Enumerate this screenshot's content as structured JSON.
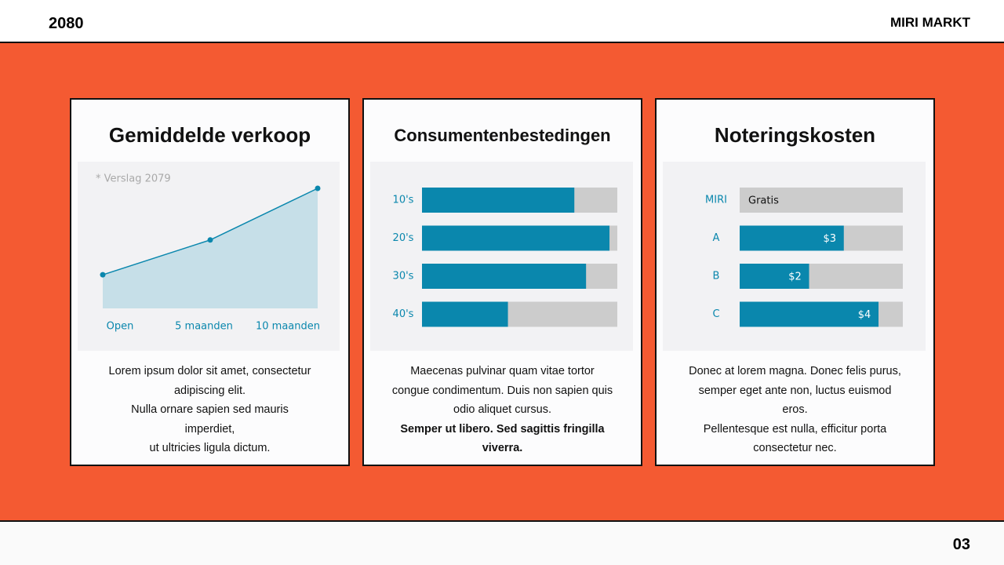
{
  "header": {
    "left": "2080",
    "right": "MIRI MARKT"
  },
  "footer": {
    "page": "03"
  },
  "chart_data": [
    {
      "type": "line",
      "title": "Gemiddelde verkoop",
      "annotation": "* Verslag 2079",
      "categories": [
        "Open",
        "5 maanden",
        "10 maanden"
      ],
      "values": [
        28,
        57,
        100
      ],
      "ylim": [
        0,
        100
      ],
      "color": "#0a87ad",
      "area_color": "#c6dfe8"
    },
    {
      "type": "hbar",
      "title": "Consumentenbestedingen",
      "categories": [
        "10's",
        "20's",
        "30's",
        "40's"
      ],
      "values": [
        78,
        96,
        84,
        44
      ],
      "xlim": [
        0,
        100
      ],
      "color": "#0a87ad",
      "track_color": "#cccccc"
    },
    {
      "type": "hbar",
      "title": "Noteringskosten",
      "categories": [
        "MIRI",
        "A",
        "B",
        "C"
      ],
      "values": [
        0,
        3,
        2,
        4
      ],
      "value_labels": [
        "Gratis",
        "$3",
        "$2",
        "$4"
      ],
      "xlim": [
        0,
        4.7
      ],
      "color": "#0a87ad",
      "track_color": "#cccccc"
    }
  ],
  "cards": [
    {
      "lines": [
        "Lorem ipsum dolor sit amet, consectetur",
        "adipiscing elit.",
        "Nulla ornare sapien sed mauris",
        "imperdiet,",
        "ut ultricies ligula dictum."
      ]
    },
    {
      "lines": [
        "Maecenas pulvinar quam vitae tortor",
        "congue condimentum. Duis non sapien quis",
        "odio aliquet cursus.",
        "Semper ut libero. Sed sagittis fringilla",
        "viverra."
      ]
    },
    {
      "lines": [
        "Donec at lorem magna. Donec felis purus,",
        "semper eget ante non, luctus euismod",
        "eros.",
        "Pellentesque est nulla, efficitur porta",
        "consectetur nec."
      ]
    }
  ]
}
